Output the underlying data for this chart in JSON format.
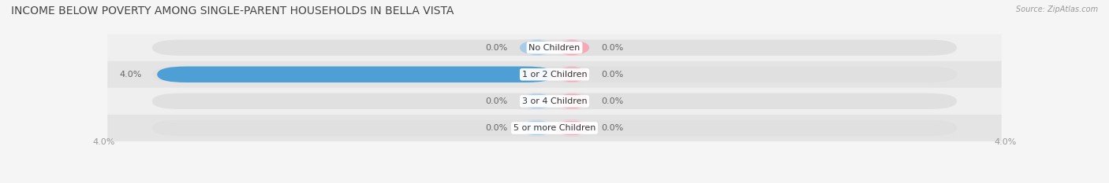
{
  "title": "INCOME BELOW POVERTY AMONG SINGLE-PARENT HOUSEHOLDS IN BELLA VISTA",
  "source": "Source: ZipAtlas.com",
  "categories": [
    "No Children",
    "1 or 2 Children",
    "3 or 4 Children",
    "5 or more Children"
  ],
  "single_father_values": [
    0.0,
    4.0,
    0.0,
    0.0
  ],
  "single_mother_values": [
    0.0,
    0.0,
    0.0,
    0.0
  ],
  "xlim_val": 4.0,
  "father_color_full": "#4d9fd6",
  "father_color_stub": "#a8cce8",
  "mother_color": "#f4a8b8",
  "row_bg_light": "#efefef",
  "row_bg_dark": "#e4e4e4",
  "pill_bg": "#e0e0e0",
  "label_color": "#666666",
  "title_color": "#444444",
  "axis_label_color": "#999999",
  "font_size_title": 10,
  "font_size_labels": 8,
  "font_size_axis": 8,
  "font_size_source": 7,
  "background_color": "#f5f5f5"
}
